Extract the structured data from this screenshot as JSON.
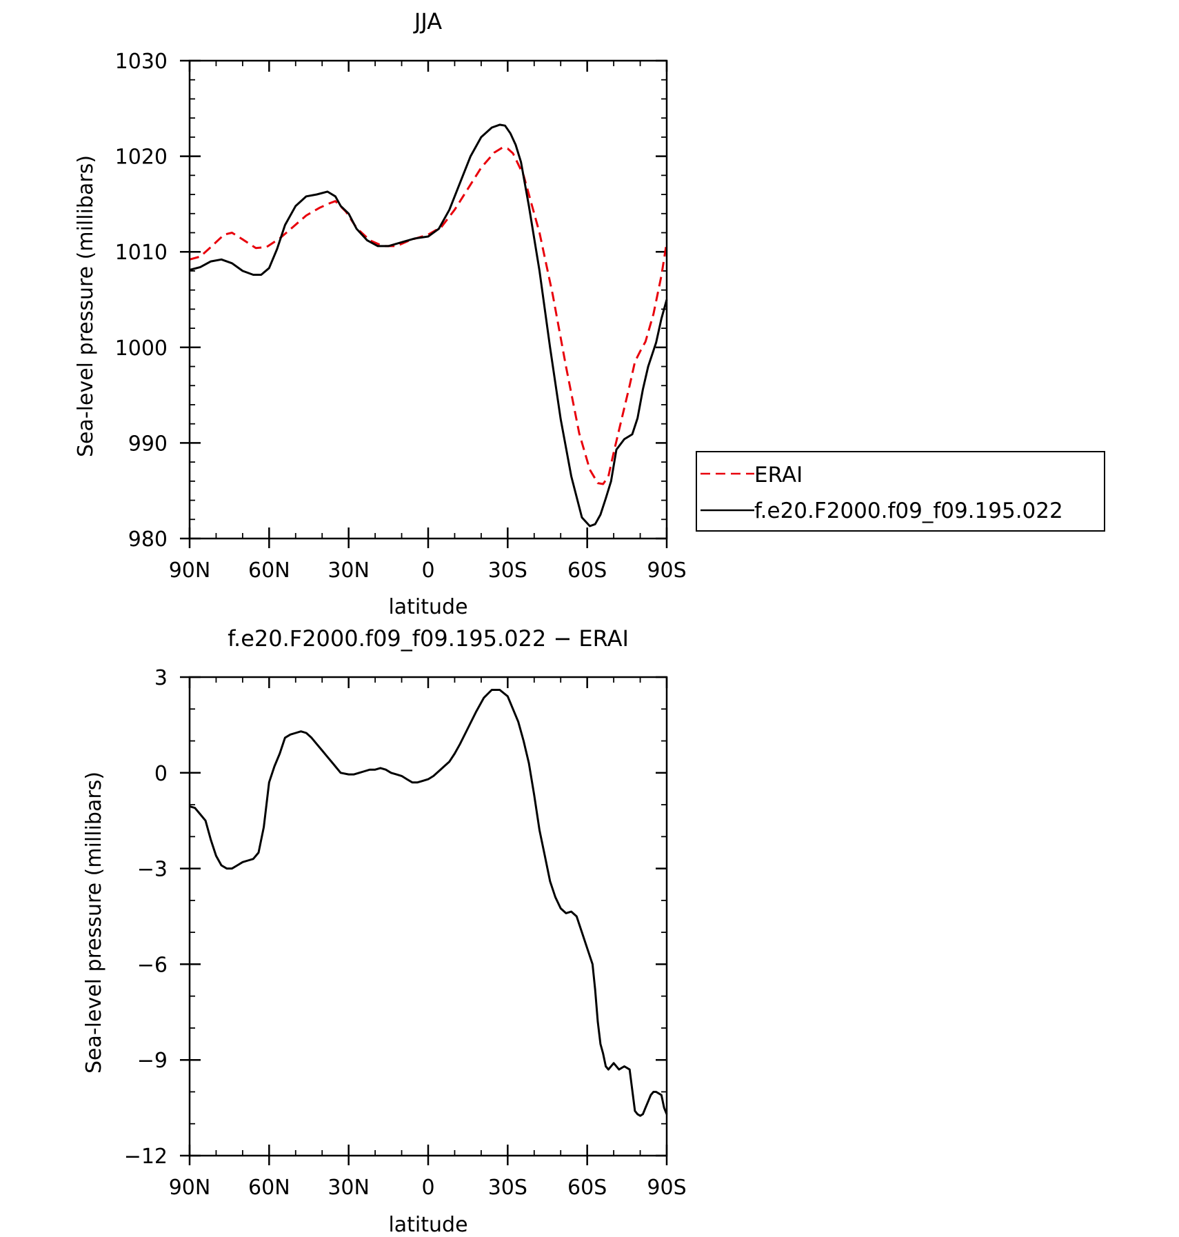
{
  "chart_data": [
    {
      "type": "line",
      "title": "JJA",
      "xlabel": "latitude",
      "ylabel": "Sea-level pressure (millibars)",
      "xlim": [
        90,
        -90
      ],
      "ylim": [
        980,
        1030
      ],
      "x_ticks": [
        90,
        60,
        30,
        0,
        -30,
        -60,
        -90
      ],
      "x_tick_labels": [
        "90N",
        "60N",
        "30N",
        "0",
        "30S",
        "60S",
        "90S"
      ],
      "y_ticks": [
        980,
        990,
        1000,
        1010,
        1020,
        1030
      ],
      "y_tick_labels": [
        "980",
        "990",
        "1000",
        "1010",
        "1020",
        "1030"
      ],
      "legend_position": "right",
      "series": [
        {
          "name": "ERAI",
          "color": "#e8000b",
          "dash": "dashed",
          "x": [
            90,
            86,
            82,
            77,
            74,
            70,
            65,
            61,
            56,
            51,
            46,
            41,
            37,
            35,
            31,
            27,
            22,
            17,
            12,
            7,
            0,
            -5,
            -10,
            -15,
            -20,
            -25,
            -28,
            -30,
            -32,
            -36,
            -42,
            -47,
            -52,
            -57,
            -61,
            -64,
            -66,
            -68,
            -70,
            -73,
            -76,
            -78,
            -80,
            -82,
            -85,
            -88,
            -90
          ],
          "values": [
            1009.2,
            1009.5,
            1010.5,
            1011.8,
            1012.0,
            1011.3,
            1010.4,
            1010.5,
            1011.4,
            1012.6,
            1013.8,
            1014.6,
            1015.1,
            1015.3,
            1014.2,
            1012.5,
            1011.2,
            1010.6,
            1010.6,
            1011.2,
            1011.8,
            1012.6,
            1014.4,
            1016.6,
            1018.8,
            1020.4,
            1020.9,
            1020.8,
            1020.3,
            1018.0,
            1012.0,
            1005.5,
            998.0,
            991.0,
            987.2,
            985.8,
            985.7,
            986.5,
            989.0,
            992.5,
            996.0,
            998.5,
            999.6,
            1000.6,
            1003.5,
            1007.5,
            1011.0
          ]
        },
        {
          "name": "f.e20.F2000.f09_f09.195.022",
          "color": "#000000",
          "dash": "solid",
          "x": [
            90,
            86,
            82,
            78,
            74,
            70,
            66,
            63,
            60,
            57,
            54,
            50,
            46,
            42,
            38,
            35,
            33,
            30,
            27,
            23,
            19,
            15,
            10,
            5,
            0,
            -4,
            -8,
            -12,
            -16,
            -20,
            -24,
            -27,
            -29,
            -31,
            -33,
            -35,
            -38,
            -42,
            -46,
            -50,
            -54,
            -58,
            -61,
            -63,
            -65,
            -67,
            -69,
            -71,
            -74,
            -77,
            -79,
            -81,
            -83,
            -86,
            -88,
            -90
          ],
          "values": [
            1008.1,
            1008.4,
            1009.0,
            1009.2,
            1008.8,
            1008.0,
            1007.6,
            1007.6,
            1008.3,
            1010.3,
            1012.8,
            1014.8,
            1015.8,
            1016.0,
            1016.3,
            1015.8,
            1014.8,
            1014.0,
            1012.4,
            1011.2,
            1010.6,
            1010.6,
            1011.0,
            1011.4,
            1011.6,
            1012.4,
            1014.4,
            1017.2,
            1020.0,
            1022.0,
            1023.0,
            1023.3,
            1023.2,
            1022.4,
            1021.2,
            1019.4,
            1014.8,
            1008.0,
            1000.0,
            992.5,
            986.5,
            982.2,
            981.3,
            981.5,
            982.5,
            984.2,
            986.0,
            989.3,
            990.4,
            990.9,
            992.6,
            995.6,
            998.0,
            1000.5,
            1003.0,
            1005.0
          ]
        }
      ]
    },
    {
      "type": "line",
      "title": "f.e20.F2000.f09_f09.195.022 − ERAI",
      "xlabel": "latitude",
      "ylabel": "Sea-level pressure (millibars)",
      "xlim": [
        90,
        -90
      ],
      "ylim": [
        -12,
        3
      ],
      "x_ticks": [
        90,
        60,
        30,
        0,
        -30,
        -60,
        -90
      ],
      "x_tick_labels": [
        "90N",
        "60N",
        "30N",
        "0",
        "30S",
        "60S",
        "90S"
      ],
      "y_ticks": [
        -12,
        -9,
        -6,
        -3,
        0,
        3
      ],
      "y_tick_labels": [
        "−12",
        "−9",
        "−6",
        "−3",
        "0",
        "3"
      ],
      "series": [
        {
          "color": "#000000",
          "dash": "solid",
          "x": [
            90,
            88,
            86,
            84,
            82,
            80,
            78,
            76,
            74,
            72,
            70,
            68,
            66,
            64,
            62,
            60,
            58,
            56,
            54,
            52,
            50,
            48,
            46,
            44,
            42,
            40,
            38,
            36,
            35,
            33,
            30,
            28,
            26,
            24,
            22,
            20,
            18,
            16,
            14,
            12,
            10,
            8,
            6,
            4,
            2,
            0,
            -2,
            -4,
            -6,
            -8,
            -10,
            -12,
            -15,
            -18,
            -21,
            -24,
            -27,
            -30,
            -32,
            -34,
            -36,
            -38,
            -40,
            -42,
            -44,
            -46,
            -48,
            -50,
            -52,
            -54,
            -56,
            -58,
            -60,
            -62,
            -63,
            -64,
            -65,
            -66,
            -67,
            -68,
            -70,
            -72,
            -74,
            -76,
            -78,
            -79,
            -80,
            -81,
            -82,
            -83,
            -84,
            -85,
            -86,
            -87,
            -88,
            -89,
            -90
          ],
          "values": [
            -1.05,
            -1.1,
            -1.3,
            -1.5,
            -2.1,
            -2.6,
            -2.9,
            -3.0,
            -3.0,
            -2.9,
            -2.8,
            -2.75,
            -2.7,
            -2.5,
            -1.7,
            -0.3,
            0.2,
            0.6,
            1.1,
            1.2,
            1.25,
            1.3,
            1.25,
            1.1,
            0.9,
            0.7,
            0.5,
            0.3,
            0.2,
            0.0,
            -0.05,
            -0.05,
            0.0,
            0.05,
            0.1,
            0.1,
            0.15,
            0.1,
            0.0,
            -0.05,
            -0.1,
            -0.2,
            -0.3,
            -0.3,
            -0.25,
            -0.2,
            -0.1,
            0.05,
            0.2,
            0.35,
            0.6,
            0.9,
            1.4,
            1.9,
            2.35,
            2.6,
            2.6,
            2.4,
            2.0,
            1.6,
            1.0,
            0.3,
            -0.7,
            -1.8,
            -2.6,
            -3.4,
            -3.9,
            -4.25,
            -4.4,
            -4.35,
            -4.5,
            -5.0,
            -5.5,
            -6.0,
            -6.8,
            -7.8,
            -8.5,
            -8.8,
            -9.2,
            -9.3,
            -9.1,
            -9.3,
            -9.2,
            -9.3,
            -10.6,
            -10.7,
            -10.75,
            -10.7,
            -10.5,
            -10.3,
            -10.1,
            -10.0,
            -10.0,
            -10.05,
            -10.1,
            -10.5,
            -10.7
          ],
          "values_note_deleted": null
        }
      ]
    }
  ]
}
